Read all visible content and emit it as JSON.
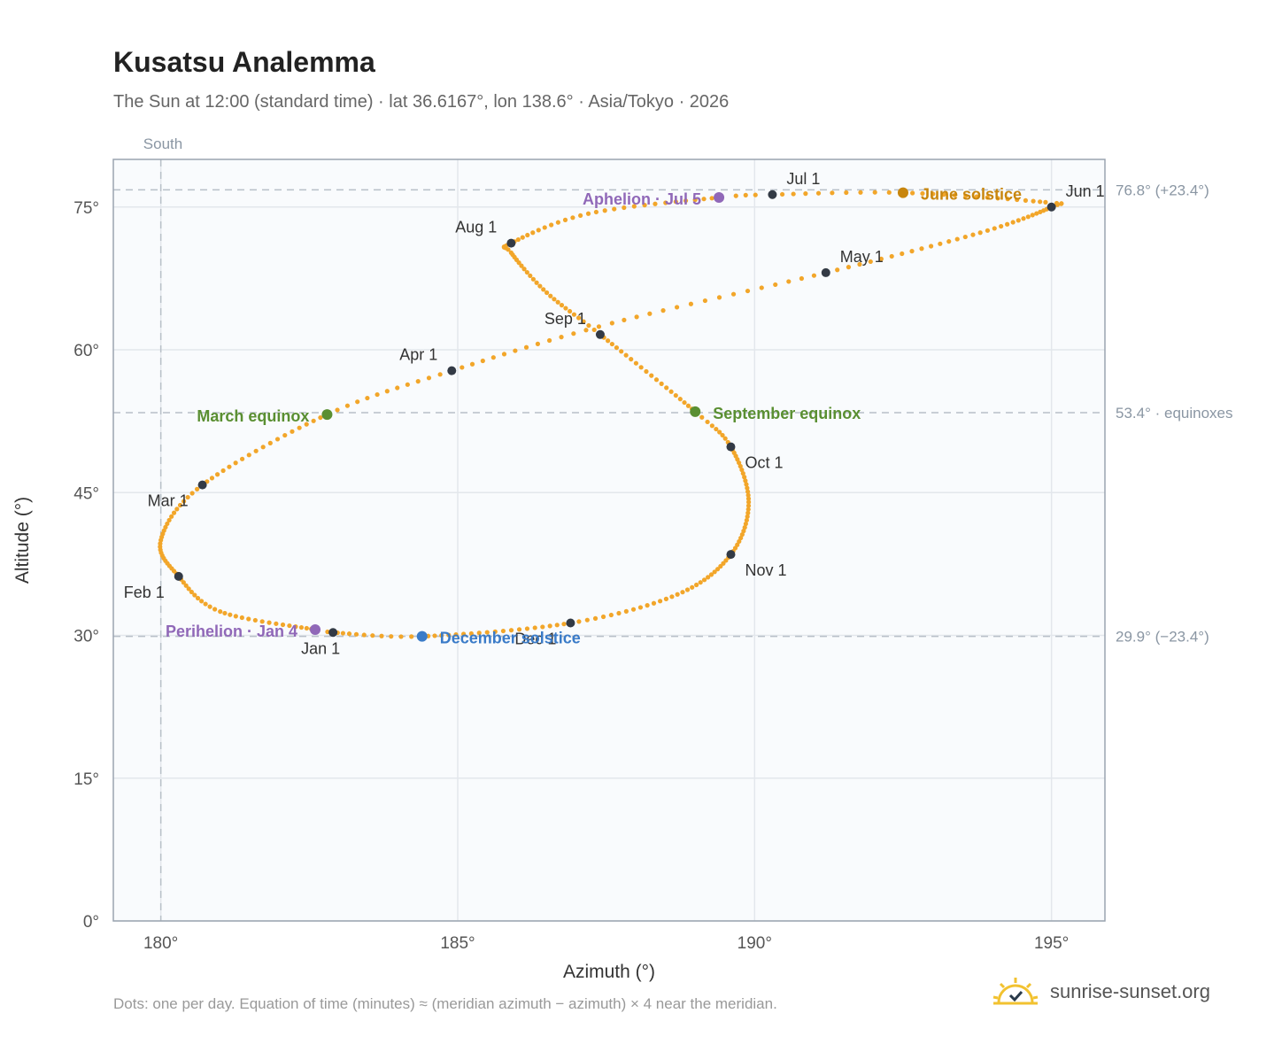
{
  "header": {
    "title": "Kusatsu Analemma",
    "subtitle": "The Sun at 12:00 (standard time) · lat 36.6167°, lon 138.6° · Asia/Tokyo · 2026"
  },
  "footer": {
    "note": "Dots: one per day. Equation of time (minutes) ≈ (meridian azimuth − azimuth) × 4 near the meridian.",
    "brand": "sunrise-sunset.org"
  },
  "colors": {
    "curve": "#f2a62a",
    "month": "#333a45",
    "equinox": "#5a8f32",
    "june_solstice": "#c8860d",
    "december_solstice": "#3a7bc8",
    "apsis": "#9068b8",
    "grid": "#e3e7ec",
    "ref_line": "#b8c0c8",
    "plot_bg": "#f9fbfd"
  },
  "chart_data": {
    "type": "scatter",
    "title": "Kusatsu Analemma",
    "xlabel": "Azimuth (°)",
    "ylabel": "Altitude (°)",
    "xlim": [
      179.2,
      195.9
    ],
    "ylim": [
      0,
      80
    ],
    "x_ticks": [
      180,
      185,
      190,
      195
    ],
    "x_tick_labels": [
      "180°",
      "185°",
      "190°",
      "195°"
    ],
    "y_ticks": [
      0,
      15,
      30,
      45,
      60,
      75
    ],
    "y_tick_labels": [
      "0°",
      "15°",
      "30°",
      "45°",
      "60°",
      "75°"
    ],
    "grid": true,
    "meridian": {
      "x": 180,
      "label": "South"
    },
    "reference_lines": [
      {
        "y": 76.8,
        "label": "76.8° (+23.4°)"
      },
      {
        "y": 53.4,
        "label": "53.4° · equinoxes"
      },
      {
        "y": 29.9,
        "label": "29.9° (−23.4°)"
      }
    ],
    "curve_keypoints": [
      {
        "day": 1,
        "x": 182.9,
        "y": 30.3
      },
      {
        "day": 4,
        "x": 182.6,
        "y": 30.6
      },
      {
        "day": 20,
        "x": 181.0,
        "y": 32.5
      },
      {
        "day": 32,
        "x": 180.3,
        "y": 36.2
      },
      {
        "day": 45,
        "x": 180.0,
        "y": 40.0
      },
      {
        "day": 60,
        "x": 180.7,
        "y": 45.8
      },
      {
        "day": 79,
        "x": 182.8,
        "y": 53.2
      },
      {
        "day": 91,
        "x": 184.9,
        "y": 57.8
      },
      {
        "day": 105,
        "x": 187.6,
        "y": 62.8
      },
      {
        "day": 121,
        "x": 191.2,
        "y": 68.1
      },
      {
        "day": 137,
        "x": 193.8,
        "y": 72.3
      },
      {
        "day": 152,
        "x": 195.0,
        "y": 75.0
      },
      {
        "day": 157,
        "x": 194.9,
        "y": 75.5
      },
      {
        "day": 172,
        "x": 192.5,
        "y": 76.5
      },
      {
        "day": 182,
        "x": 190.3,
        "y": 76.3
      },
      {
        "day": 186,
        "x": 189.4,
        "y": 76.0
      },
      {
        "day": 200,
        "x": 187.2,
        "y": 74.3
      },
      {
        "day": 213,
        "x": 185.9,
        "y": 71.2
      },
      {
        "day": 219,
        "x": 185.9,
        "y": 70.2
      },
      {
        "day": 232,
        "x": 186.5,
        "y": 66.0
      },
      {
        "day": 244,
        "x": 187.4,
        "y": 61.6
      },
      {
        "day": 265,
        "x": 189.0,
        "y": 53.5
      },
      {
        "day": 274,
        "x": 189.6,
        "y": 49.8
      },
      {
        "day": 290,
        "x": 189.9,
        "y": 44.0
      },
      {
        "day": 305,
        "x": 189.6,
        "y": 38.5
      },
      {
        "day": 320,
        "x": 188.7,
        "y": 34.3
      },
      {
        "day": 335,
        "x": 186.9,
        "y": 31.3
      },
      {
        "day": 355,
        "x": 184.4,
        "y": 29.9
      },
      {
        "day": 366,
        "x": 182.9,
        "y": 30.3
      }
    ],
    "month_markers": [
      {
        "label": "Jan 1",
        "x": 182.9,
        "y": 30.3,
        "pos": "below"
      },
      {
        "label": "Feb 1",
        "x": 180.3,
        "y": 36.2,
        "pos": "below-left"
      },
      {
        "label": "Mar 1",
        "x": 180.7,
        "y": 45.8,
        "pos": "below-left"
      },
      {
        "label": "Apr 1",
        "x": 184.9,
        "y": 57.8,
        "pos": "above-left"
      },
      {
        "label": "May 1",
        "x": 191.2,
        "y": 68.1,
        "pos": "above-right"
      },
      {
        "label": "Jun 1",
        "x": 195.0,
        "y": 75.0,
        "pos": "above-right"
      },
      {
        "label": "Jul 1",
        "x": 190.3,
        "y": 76.3,
        "pos": "above-right"
      },
      {
        "label": "Aug 1",
        "x": 185.9,
        "y": 71.2,
        "pos": "above-left"
      },
      {
        "label": "Sep 1",
        "x": 187.4,
        "y": 61.6,
        "pos": "above-left"
      },
      {
        "label": "Oct 1",
        "x": 189.6,
        "y": 49.8,
        "pos": "below-right"
      },
      {
        "label": "Nov 1",
        "x": 189.6,
        "y": 38.5,
        "pos": "below-right"
      },
      {
        "label": "Dec 1",
        "x": 186.9,
        "y": 31.3,
        "pos": "below-left"
      }
    ],
    "events": [
      {
        "label": "March equinox",
        "x": 182.8,
        "y": 53.2,
        "color_key": "equinox",
        "side": "left"
      },
      {
        "label": "September equinox",
        "x": 189.0,
        "y": 53.5,
        "color_key": "equinox",
        "side": "right"
      },
      {
        "label": "June solstice",
        "x": 192.5,
        "y": 76.5,
        "color_key": "june_solstice",
        "side": "right"
      },
      {
        "label": "December solstice",
        "x": 184.4,
        "y": 29.9,
        "color_key": "december_solstice",
        "side": "right"
      },
      {
        "label": "Aphelion · Jul 5",
        "x": 189.4,
        "y": 76.0,
        "color_key": "apsis",
        "side": "left"
      },
      {
        "label": "Perihelion · Jan 4",
        "x": 182.6,
        "y": 30.6,
        "color_key": "apsis",
        "side": "left"
      }
    ]
  }
}
